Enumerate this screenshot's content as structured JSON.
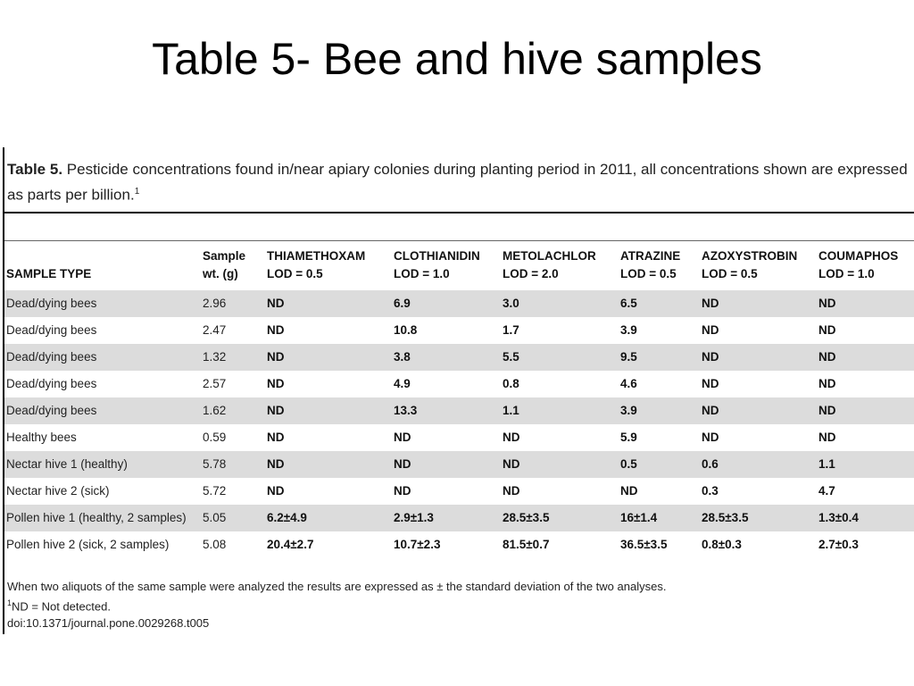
{
  "slide_title": "Table 5- Bee and hive samples",
  "table": {
    "caption_label": "Table 5.",
    "caption_text": "Pesticide concentrations found in/near apiary colonies during planting period in 2011, all concentrations shown are expressed as parts per billion.",
    "caption_sup": "1",
    "columns": [
      {
        "line1": "",
        "line2": "SAMPLE TYPE"
      },
      {
        "line1": "Sample",
        "line2": "wt. (g)"
      },
      {
        "line1": "THIAMETHOXAM",
        "line2": "LOD = 0.5"
      },
      {
        "line1": "CLOTHIANIDIN",
        "line2": "LOD = 1.0"
      },
      {
        "line1": "METOLACHLOR",
        "line2": "LOD = 2.0"
      },
      {
        "line1": "ATRAZINE",
        "line2": "LOD = 0.5"
      },
      {
        "line1": "AZOXYSTROBIN",
        "line2": "LOD = 0.5"
      },
      {
        "line1": "COUMAPHOS",
        "line2": "LOD = 1.0"
      }
    ],
    "rows": [
      [
        "Dead/dying bees",
        "2.96",
        "ND",
        "6.9",
        "3.0",
        "6.5",
        "ND",
        "ND"
      ],
      [
        "Dead/dying bees",
        "2.47",
        "ND",
        "10.8",
        "1.7",
        "3.9",
        "ND",
        "ND"
      ],
      [
        "Dead/dying bees",
        "1.32",
        "ND",
        "3.8",
        "5.5",
        "9.5",
        "ND",
        "ND"
      ],
      [
        "Dead/dying bees",
        "2.57",
        "ND",
        "4.9",
        "0.8",
        "4.6",
        "ND",
        "ND"
      ],
      [
        "Dead/dying bees",
        "1.62",
        "ND",
        "13.3",
        "1.1",
        "3.9",
        "ND",
        "ND"
      ],
      [
        "Healthy bees",
        "0.59",
        "ND",
        "ND",
        "ND",
        "5.9",
        "ND",
        "ND"
      ],
      [
        "Nectar hive 1 (healthy)",
        "5.78",
        "ND",
        "ND",
        "ND",
        "0.5",
        "0.6",
        "1.1"
      ],
      [
        "Nectar hive 2 (sick)",
        "5.72",
        "ND",
        "ND",
        "ND",
        "ND",
        "0.3",
        "4.7"
      ],
      [
        "Pollen hive 1 (healthy, 2 samples)",
        "5.05",
        "6.2±4.9",
        "2.9±1.3",
        "28.5±3.5",
        "16±1.4",
        "28.5±3.5",
        "1.3±0.4"
      ],
      [
        "Pollen hive 2 (sick, 2 samples)",
        "5.08",
        "20.4±2.7",
        "10.7±2.3",
        "81.5±0.7",
        "36.5±3.5",
        "0.8±0.3",
        "2.7±0.3"
      ]
    ],
    "footnote_main": "When two aliquots of the same sample were analyzed the results are expressed as ± the standard deviation of the two analyses.",
    "footnote_sup": "1",
    "footnote_nd": "ND = Not detected.",
    "doi": "doi:10.1371/journal.pone.0029268.t005"
  }
}
